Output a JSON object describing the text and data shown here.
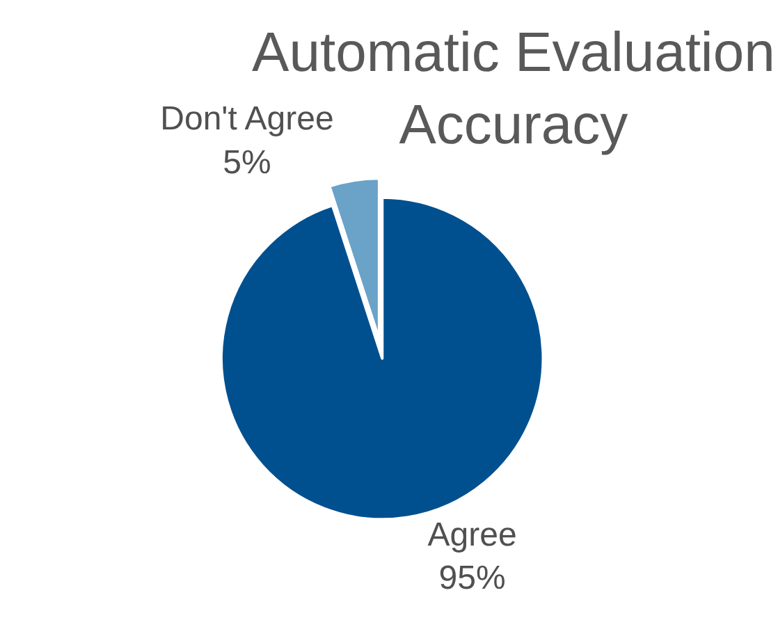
{
  "chart_data": {
    "type": "pie",
    "title": "Automatic Evaluation Accuracy",
    "categories": [
      "Agree",
      "Don't Agree"
    ],
    "values": [
      95,
      5
    ],
    "value_labels": [
      "95%",
      "5%"
    ],
    "colors": [
      "#00508f",
      "#6aa2c8"
    ],
    "legend": false
  }
}
